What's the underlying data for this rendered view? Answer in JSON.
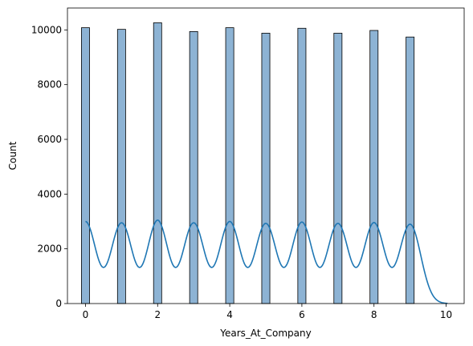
{
  "chart_data": {
    "type": "bar",
    "subtype": "histogram-with-kde",
    "title": "",
    "xlabel": "Years_At_Company",
    "ylabel": "Count",
    "xlim": [
      -0.5,
      10.5
    ],
    "ylim": [
      0,
      10800
    ],
    "xticks": [
      0,
      2,
      4,
      6,
      8,
      10
    ],
    "yticks": [
      0,
      2000,
      4000,
      6000,
      8000,
      10000
    ],
    "bins": {
      "x": [
        0,
        1,
        2,
        3,
        4,
        5,
        6,
        7,
        8,
        9
      ],
      "values": [
        10080,
        10020,
        10260,
        9940,
        10080,
        9880,
        10060,
        9880,
        9980,
        9740
      ],
      "bin_width": 0.225
    },
    "kde": {
      "peak_values": [
        3000,
        2950,
        3050,
        2950,
        3000,
        2930,
        2980,
        2930,
        2960,
        2900
      ],
      "trough_value": 1320,
      "tail_end_x": 10.05
    },
    "colors": {
      "bar_fill": "#8db3d4",
      "bar_edge": "#000000",
      "kde_line": "#1f77b4"
    },
    "grid": false,
    "legend": "none"
  }
}
